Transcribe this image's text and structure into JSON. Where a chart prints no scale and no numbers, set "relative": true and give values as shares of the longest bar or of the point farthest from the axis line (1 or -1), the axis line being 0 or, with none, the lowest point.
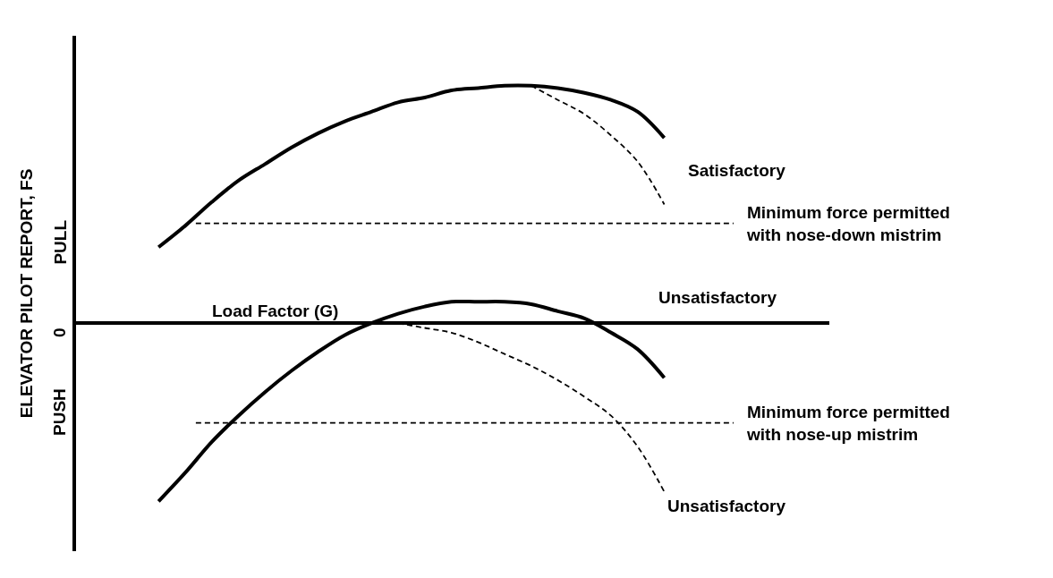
{
  "chart_data": {
    "type": "line",
    "relative": true,
    "xlabel": "Load Factor (G)",
    "ylabel": "ELEVATOR PILOT REPORT, FS",
    "categories": [
      null,
      null,
      null,
      null,
      null,
      null,
      null,
      null,
      null,
      null,
      null,
      null,
      null,
      null,
      null,
      null,
      null,
      null,
      null,
      null,
      null,
      null,
      null,
      null,
      null,
      null,
      null,
      null,
      null
    ],
    "series": [
      {
        "color": "#000000",
        "line_style": "solid",
        "values": [
          null,
          null,
          null,
          0.32,
          0.41,
          0.51,
          0.6,
          0.67,
          0.74,
          0.8,
          0.85,
          0.89,
          0.93,
          0.95,
          0.98,
          0.99,
          1.0,
          1.0,
          0.99,
          0.97,
          0.94,
          0.89,
          0.78,
          null,
          null,
          null,
          null,
          null,
          null
        ]
      },
      {
        "color": "#000000",
        "line_style": "dashed",
        "values": [
          null,
          null,
          null,
          null,
          null,
          null,
          null,
          null,
          null,
          null,
          null,
          null,
          null,
          null,
          null,
          null,
          null,
          1.0,
          0.94,
          0.88,
          0.79,
          0.68,
          0.5,
          null,
          null,
          null,
          null,
          null,
          null
        ]
      },
      {
        "color": "#000000",
        "line_style": "solid",
        "values": [
          null,
          null,
          null,
          -0.75,
          -0.63,
          -0.5,
          -0.39,
          -0.29,
          -0.2,
          -0.12,
          -0.05,
          0.0,
          0.04,
          0.07,
          0.09,
          0.09,
          0.09,
          0.08,
          0.05,
          0.02,
          -0.04,
          -0.11,
          -0.23,
          null,
          null,
          null,
          null,
          null,
          null
        ]
      },
      {
        "color": "#000000",
        "line_style": "dashed",
        "values": [
          null,
          null,
          null,
          null,
          null,
          null,
          null,
          null,
          null,
          null,
          null,
          null,
          0.0,
          -0.02,
          -0.04,
          -0.08,
          -0.13,
          -0.18,
          -0.24,
          -0.31,
          -0.39,
          -0.52,
          -0.71,
          null,
          null,
          null,
          null,
          null,
          null
        ]
      }
    ],
    "ref_lines": [
      {
        "axis": "y",
        "value": 0.42,
        "label": "Minimum force permitted\nwith nose-down mistrim",
        "line_style": "dashed",
        "color": "#000000"
      },
      {
        "axis": "y",
        "value": -0.42,
        "label": "Minimum force permitted\nwith nose-up mistrim",
        "line_style": "dashed",
        "color": "#000000"
      }
    ],
    "annotations": [
      "Satisfactory",
      "Unsatisfactory",
      "Unsatisfactory",
      "PULL",
      "0",
      "PUSH"
    ],
    "legend": false
  }
}
